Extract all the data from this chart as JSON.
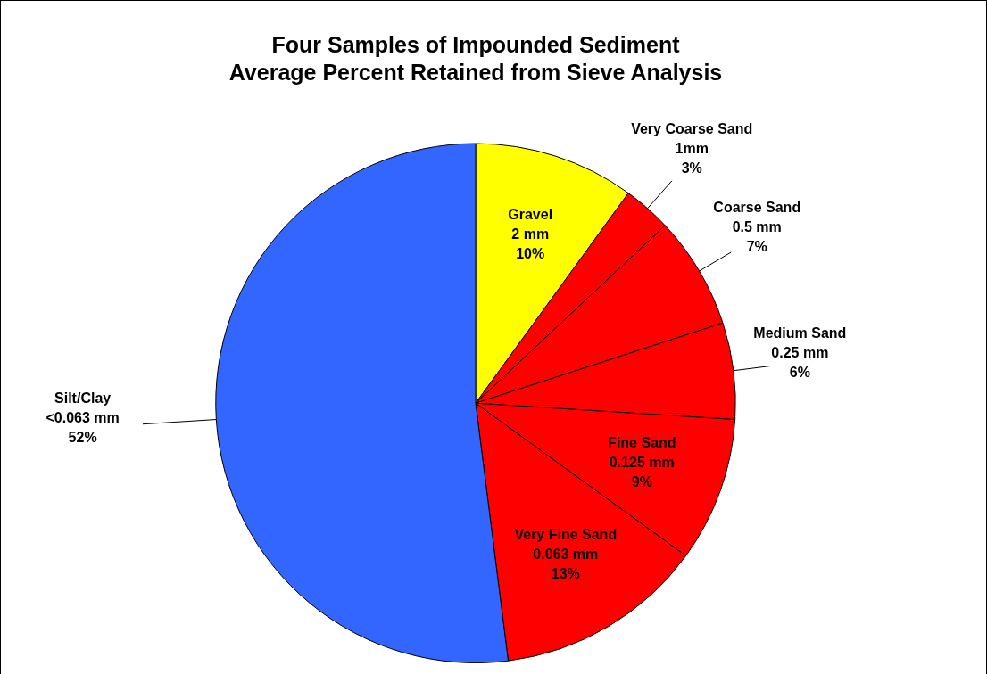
{
  "chart_data": {
    "type": "pie",
    "title": "Four Samples of Impounded Sediment\nAverage Percent Retained from Sieve Analysis",
    "categories": [
      "Gravel\n2 mm",
      "Very Coarse Sand\n1mm",
      "Coarse Sand\n0.5 mm",
      "Medium Sand\n0.25 mm",
      "Fine Sand\n0.125 mm",
      "Very Fine Sand\n0.063 mm",
      "Silt/Clay\n<0.063 mm"
    ],
    "values": [
      10,
      3,
      7,
      6,
      9,
      13,
      52
    ],
    "value_labels": [
      "10%",
      "3%",
      "7%",
      "6%",
      "9%",
      "13%",
      "52%"
    ],
    "colors": [
      "#ffff00",
      "#ff0000",
      "#ff0000",
      "#ff0000",
      "#ff0000",
      "#ff0000",
      "#3366ff"
    ],
    "legend": false
  }
}
